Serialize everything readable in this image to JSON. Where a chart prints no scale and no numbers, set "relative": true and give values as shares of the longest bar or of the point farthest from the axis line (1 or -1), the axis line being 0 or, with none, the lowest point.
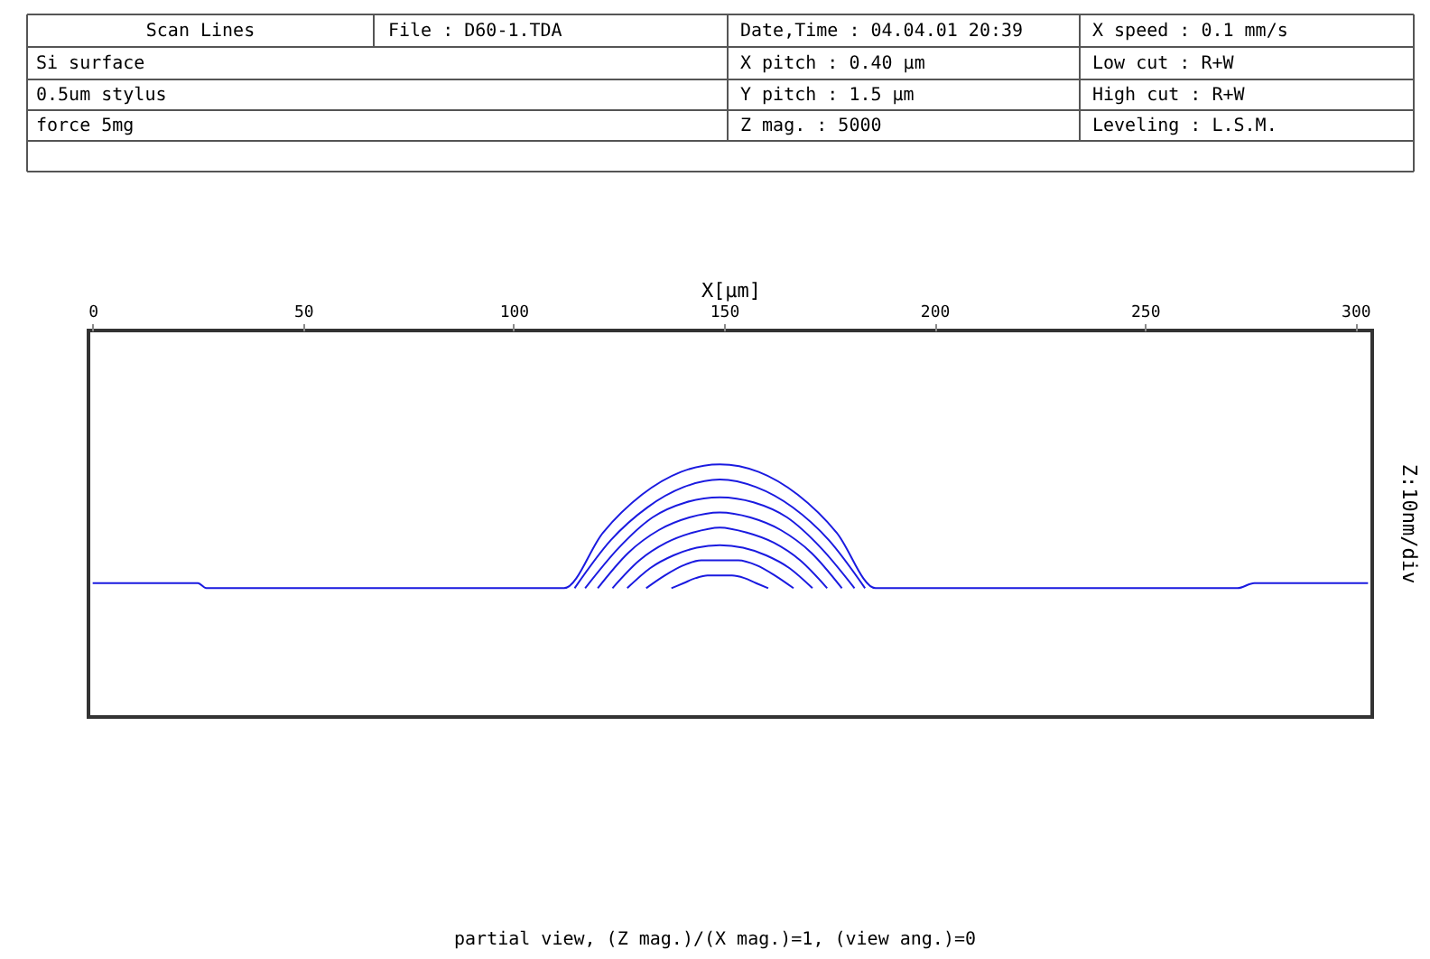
{
  "chart_data": {
    "type": "line",
    "relative": true,
    "xlabel": "X[μm]",
    "ylabel": "Z:10nm/div",
    "xlim": [
      -1,
      304
    ],
    "xticks": [
      0,
      50,
      100,
      150,
      200,
      250,
      300
    ],
    "grid": false,
    "legend": false,
    "marker": "none",
    "line_style": "solid",
    "annotations": [
      "Scan Lines",
      "File  : D60-1.TDA",
      "Date,Time : 04.04.01 20:39",
      "X speed  : 0.1 mm/s",
      "Si surface",
      "X pitch  : 0.40 μm",
      "Low cut  : R+W",
      "0.5um stylus",
      "Y pitch  : 1.5 μm",
      "High cut  : R+W",
      "force 5mg",
      "Z mag.  : 5000",
      "Leveling  : L.S.M.",
      "partial view, (Z mag.)/(X mag.)=1, (view ang.)=0"
    ],
    "series": [
      {
        "color": "#1a1ae0",
        "x": [
          0,
          25,
          27,
          112,
          121.25,
          130.5,
          139.75,
          149,
          158.25,
          167.5,
          176.75,
          186,
          272,
          276,
          303
        ],
        "values": [
          0.53,
          0.53,
          0.51,
          0.51,
          0.73,
          0.88,
          0.97,
          1,
          0.97,
          0.88,
          0.73,
          0.51,
          0.51,
          0.53,
          0.53
        ]
      },
      {
        "color": "#1a1ae0",
        "x": [
          114.5,
          123.1,
          131.8,
          140.4,
          149,
          157.6,
          166.3,
          174.9,
          183.5
        ],
        "values": [
          0.51,
          0.7,
          0.83,
          0.91,
          0.94,
          0.91,
          0.83,
          0.7,
          0.51
        ]
      },
      {
        "color": "#1a1ae0",
        "x": [
          117,
          125,
          133,
          141,
          149,
          157,
          165,
          173,
          181
        ],
        "values": [
          0.51,
          0.67,
          0.79,
          0.85,
          0.87,
          0.85,
          0.79,
          0.67,
          0.51
        ]
      },
      {
        "color": "#1a1ae0",
        "x": [
          120,
          127.25,
          134.5,
          141.75,
          149,
          156.25,
          163.5,
          170.75,
          178
        ],
        "values": [
          0.51,
          0.65,
          0.74,
          0.79,
          0.81,
          0.79,
          0.74,
          0.65,
          0.51
        ]
      },
      {
        "color": "#1a1ae0",
        "x": [
          123.5,
          129.9,
          136.3,
          142.6,
          149,
          155.4,
          161.8,
          168.1,
          174.5
        ],
        "values": [
          0.51,
          0.62,
          0.69,
          0.73,
          0.75,
          0.73,
          0.69,
          0.62,
          0.51
        ]
      },
      {
        "color": "#1a1ae0",
        "x": [
          127,
          132.5,
          138,
          143.5,
          149,
          154.5,
          160,
          165.5,
          171
        ],
        "values": [
          0.51,
          0.59,
          0.64,
          0.67,
          0.68,
          0.67,
          0.64,
          0.59,
          0.51
        ]
      },
      {
        "color": "#1a1ae0",
        "x": [
          131.5,
          135.9,
          140.3,
          144.6,
          149,
          153.4,
          157.8,
          162.1,
          166.5
        ],
        "values": [
          0.51,
          0.56,
          0.6,
          0.62,
          0.62,
          0.62,
          0.6,
          0.56,
          0.51
        ]
      },
      {
        "color": "#1a1ae0",
        "x": [
          137.5,
          140.4,
          143.3,
          146.1,
          149,
          151.9,
          154.8,
          157.6,
          160.5
        ],
        "values": [
          0.51,
          0.53,
          0.55,
          0.56,
          0.56,
          0.56,
          0.55,
          0.53,
          0.51
        ]
      }
    ]
  }
}
